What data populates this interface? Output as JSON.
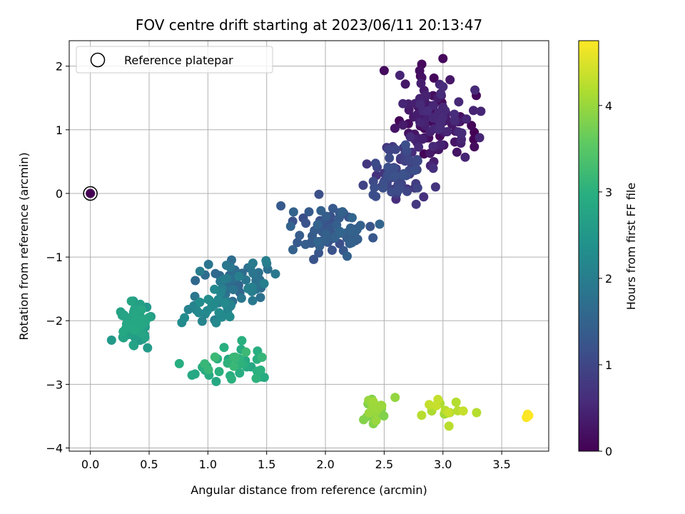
{
  "chart_data": {
    "type": "scatter",
    "title": "FOV centre drift starting at 2023/06/11 20:13:47",
    "xlabel": "Angular distance from reference (arcmin)",
    "ylabel": "Rotation from reference (arcmin)",
    "xlim": [
      -0.18,
      3.9
    ],
    "ylim": [
      -4.05,
      2.4
    ],
    "x_ticks": [
      0.0,
      0.5,
      1.0,
      1.5,
      2.0,
      2.5,
      3.0,
      3.5
    ],
    "x_tick_labels": [
      "0.0",
      "0.5",
      "1.0",
      "1.5",
      "2.0",
      "2.5",
      "3.0",
      "3.5"
    ],
    "y_ticks": [
      -4,
      -3,
      -2,
      -1,
      0,
      1,
      2
    ],
    "y_tick_labels": [
      "−4",
      "−3",
      "−2",
      "−1",
      "0",
      "1",
      "2"
    ],
    "grid": true,
    "legend": {
      "position": "top-left",
      "entries": [
        "Reference platepar"
      ]
    },
    "colorbar": {
      "label": "Hours from first FF file",
      "colormap": "viridis",
      "range": [
        0,
        4.75
      ],
      "ticks": [
        0,
        1,
        2,
        3,
        4
      ],
      "tick_labels": [
        "0",
        "1",
        "2",
        "3",
        "4"
      ]
    },
    "reference_point": {
      "x": 0.0,
      "y": 0.0
    },
    "clusters": [
      {
        "hours": [
          0.0,
          0.6
        ],
        "x_range": [
          2.45,
          3.4
        ],
        "y_range": [
          0.3,
          2.1
        ],
        "count": 140,
        "seed": 11
      },
      {
        "hours": [
          0.6,
          1.2
        ],
        "x_range": [
          2.2,
          3.0
        ],
        "y_range": [
          -0.3,
          1.0
        ],
        "count": 80,
        "seed": 12
      },
      {
        "hours": [
          1.1,
          1.55
        ],
        "x_range": [
          1.5,
          2.6
        ],
        "y_range": [
          -1.25,
          0.05
        ],
        "count": 80,
        "seed": 13
      },
      {
        "hours": [
          1.55,
          2.05
        ],
        "x_range": [
          0.75,
          1.75
        ],
        "y_range": [
          -1.9,
          -0.85
        ],
        "count": 60,
        "seed": 14
      },
      {
        "hours": [
          2.0,
          2.3
        ],
        "x_range": [
          0.7,
          1.4
        ],
        "y_range": [
          -2.2,
          -1.4
        ],
        "count": 30,
        "seed": 15
      },
      {
        "hours": [
          2.5,
          2.85
        ],
        "x_range": [
          0.15,
          0.6
        ],
        "y_range": [
          -2.6,
          -1.55
        ],
        "count": 70,
        "seed": 16
      },
      {
        "hours": [
          2.8,
          3.2
        ],
        "x_range": [
          0.6,
          1.7
        ],
        "y_range": [
          -3.25,
          -2.1
        ],
        "count": 40,
        "seed": 17
      },
      {
        "hours": [
          3.8,
          4.05
        ],
        "x_range": [
          2.2,
          2.65
        ],
        "y_range": [
          -3.7,
          -3.1
        ],
        "count": 25,
        "seed": 18
      },
      {
        "hours": [
          4.05,
          4.35
        ],
        "x_range": [
          2.7,
          3.4
        ],
        "y_range": [
          -3.75,
          -3.1
        ],
        "count": 16,
        "seed": 19
      }
    ],
    "outliers": [
      {
        "x": 3.71,
        "y": -3.52,
        "hours": 4.72
      },
      {
        "x": 3.72,
        "y": -3.47,
        "hours": 4.72
      },
      {
        "x": 3.73,
        "y": -3.49,
        "hours": 4.75
      },
      {
        "x": 3.0,
        "y": 2.12,
        "hours": 0.1
      },
      {
        "x": 2.82,
        "y": 2.03,
        "hours": 0.1
      },
      {
        "x": 2.5,
        "y": 1.93,
        "hours": 0.15
      }
    ]
  }
}
